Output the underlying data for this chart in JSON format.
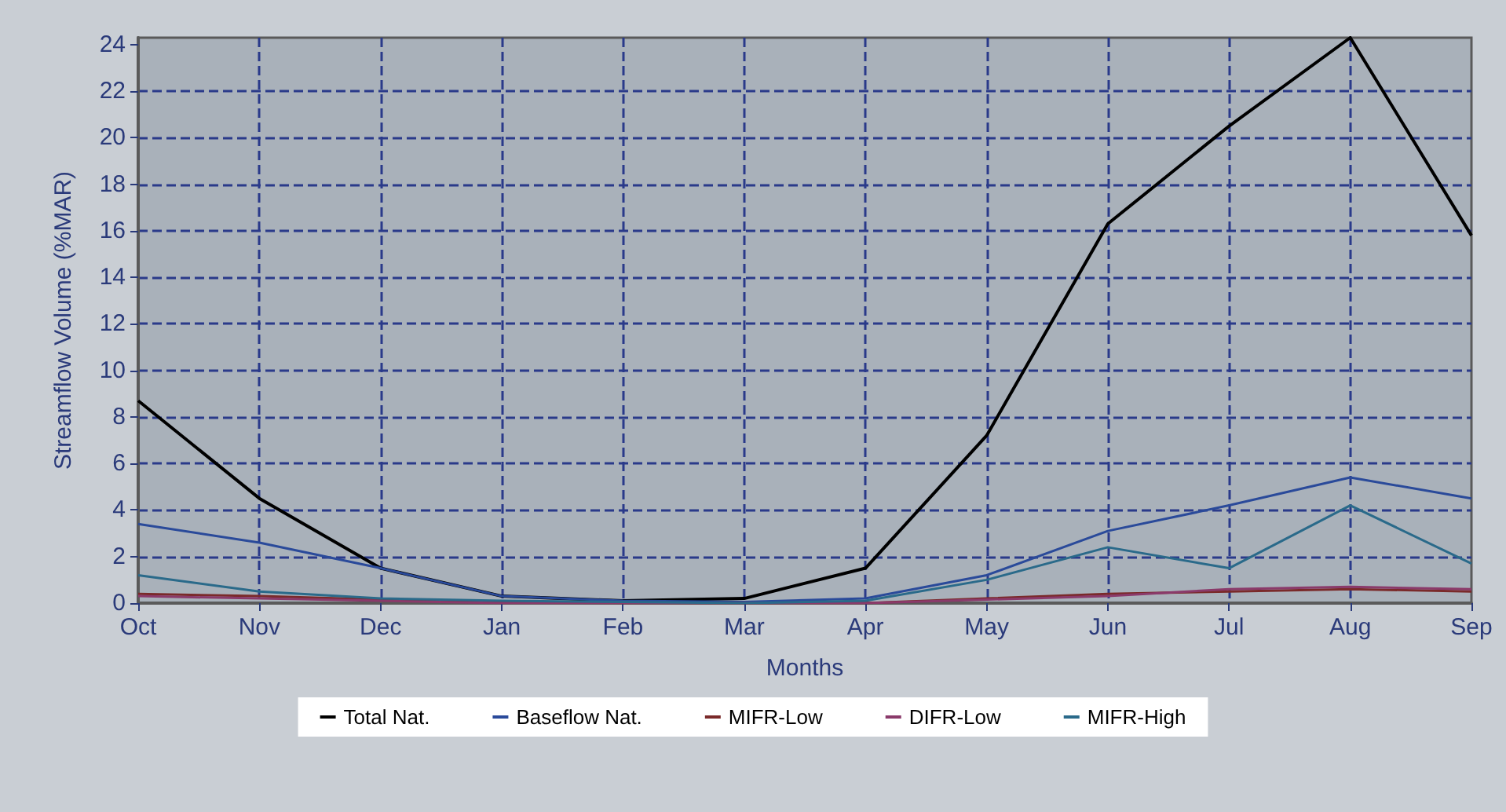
{
  "chart_data": {
    "type": "line",
    "xlabel": "Months",
    "ylabel": "Streamflow Volume (%MAR)",
    "categories": [
      "Oct",
      "Nov",
      "Dec",
      "Jan",
      "Feb",
      "Mar",
      "Apr",
      "May",
      "Jun",
      "Jul",
      "Aug",
      "Sep"
    ],
    "series": [
      {
        "name": "Total Nat.",
        "color": "#000000",
        "values": [
          8.7,
          4.5,
          1.5,
          0.3,
          0.1,
          0.2,
          1.5,
          7.2,
          16.3,
          20.5,
          24.3,
          15.8
        ]
      },
      {
        "name": "Baseflow Nat.",
        "color": "#2a4a9a",
        "values": [
          3.4,
          2.6,
          1.5,
          0.3,
          0.1,
          0.05,
          0.2,
          1.2,
          3.1,
          4.2,
          5.4,
          4.5
        ]
      },
      {
        "name": "MIFR-Low",
        "color": "#7a2a2a",
        "values": [
          0.4,
          0.3,
          0.15,
          0.05,
          0,
          0,
          0,
          0.2,
          0.4,
          0.5,
          0.6,
          0.5
        ]
      },
      {
        "name": "DIFR-Low",
        "color": "#8a3a6a",
        "values": [
          0.3,
          0.2,
          0.1,
          0,
          0,
          0,
          0,
          0.15,
          0.3,
          0.6,
          0.7,
          0.6
        ]
      },
      {
        "name": "MIFR-High",
        "color": "#2a6a8a",
        "values": [
          1.2,
          0.5,
          0.2,
          0.1,
          0.05,
          0,
          0.1,
          1.0,
          2.4,
          1.5,
          4.2,
          1.7
        ]
      }
    ],
    "ylim": [
      0,
      24.3
    ],
    "yticks": [
      0,
      2,
      4,
      6,
      8,
      10,
      12,
      14,
      16,
      18,
      20,
      22,
      24
    ],
    "grid": true,
    "legend": "bottom",
    "marker": "none",
    "line_style": "solid"
  }
}
